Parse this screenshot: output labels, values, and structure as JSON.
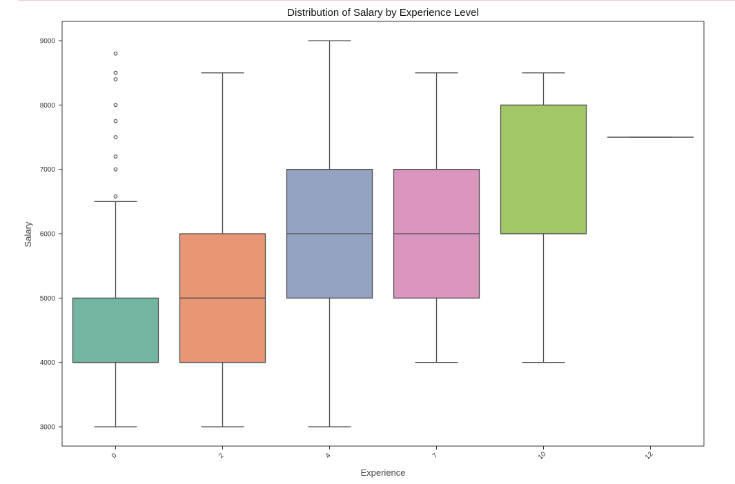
{
  "chart_data": {
    "type": "box",
    "title": "Distribution of Salary by Experience Level",
    "xlabel": "Experience",
    "ylabel": "Salary",
    "ylim": [
      2700,
      9300
    ],
    "yticks": [
      3000,
      4000,
      5000,
      6000,
      7000,
      8000,
      9000
    ],
    "grid": false,
    "categories": [
      "0",
      "2",
      "4",
      "7",
      "10",
      "12"
    ],
    "boxes": [
      {
        "category": "0",
        "whisker_low": 3000,
        "q1": 4000,
        "median": 4000,
        "q3": 5000,
        "whisker_high": 6500,
        "outliers": [
          6580,
          7000,
          7200,
          7500,
          7750,
          8000,
          8400,
          8500,
          8800
        ],
        "color": "#72b6a1"
      },
      {
        "category": "2",
        "whisker_low": 3000,
        "q1": 4000,
        "median": 5000,
        "q3": 6000,
        "whisker_high": 8500,
        "outliers": [],
        "color": "#e99675"
      },
      {
        "category": "4",
        "whisker_low": 3000,
        "q1": 5000,
        "median": 6000,
        "q3": 7000,
        "whisker_high": 9000,
        "outliers": [],
        "color": "#95a3c3"
      },
      {
        "category": "7",
        "whisker_low": 4000,
        "q1": 5000,
        "median": 6000,
        "q3": 7000,
        "whisker_high": 8500,
        "outliers": [],
        "color": "#db96c0"
      },
      {
        "category": "10",
        "whisker_low": 4000,
        "q1": 6000,
        "median": 6000,
        "q3": 8000,
        "whisker_high": 8500,
        "outliers": [],
        "color": "#a2c865"
      },
      {
        "category": "12",
        "whisker_low": 7500,
        "q1": 7500,
        "median": 7500,
        "q3": 7500,
        "whisker_high": 7500,
        "outliers": [],
        "color": "#ffd92f"
      }
    ]
  }
}
